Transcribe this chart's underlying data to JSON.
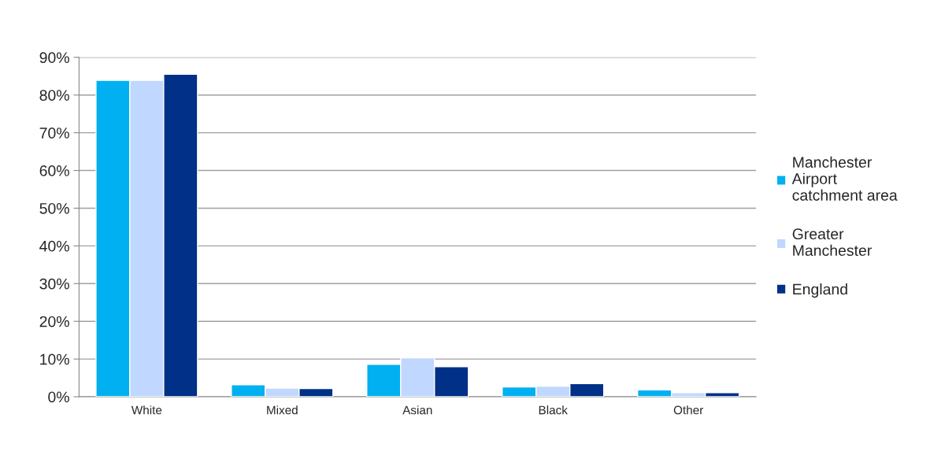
{
  "chart_data": {
    "type": "bar",
    "categories": [
      "White",
      "Mixed",
      "Asian",
      "Black",
      "Other"
    ],
    "series": [
      {
        "name": "Manchester Airport catchment area",
        "color": "#00b0f0",
        "values": [
          83.9,
          3.2,
          8.6,
          2.6,
          1.8
        ]
      },
      {
        "name": "Greater Manchester",
        "color": "#c0d8ff",
        "values": [
          83.9,
          2.3,
          10.3,
          2.8,
          1.1
        ]
      },
      {
        "name": "England",
        "color": "#003087",
        "values": [
          85.5,
          2.2,
          8.0,
          3.5,
          1.1
        ]
      }
    ],
    "ylim": [
      0,
      90
    ],
    "yticks": [
      {
        "value": 0,
        "label": "0%"
      },
      {
        "value": 10,
        "label": "10%"
      },
      {
        "value": 20,
        "label": "20%"
      },
      {
        "value": 30,
        "label": "30%"
      },
      {
        "value": 40,
        "label": "40%"
      },
      {
        "value": 50,
        "label": "50%"
      },
      {
        "value": 60,
        "label": "60%"
      },
      {
        "value": 70,
        "label": "70%"
      },
      {
        "value": 80,
        "label": "80%"
      },
      {
        "value": 90,
        "label": "90%"
      }
    ],
    "grid": "y",
    "legend": "right"
  }
}
